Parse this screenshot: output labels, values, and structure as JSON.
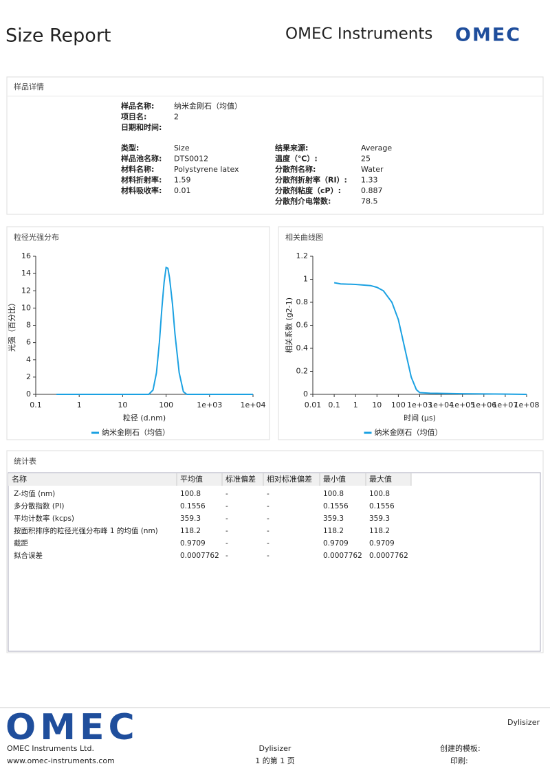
{
  "header": {
    "title": "Size Report",
    "company": "OMEC Instruments",
    "logo": "OMEC"
  },
  "sample": {
    "title": "样品详情",
    "top": [
      {
        "label": "样品名称:",
        "value": "纳米金刚石（均值）"
      },
      {
        "label": "项目名:",
        "value": "2"
      },
      {
        "label": "日期和时间:"
      }
    ],
    "left": [
      {
        "label": "类型:",
        "value": "Size"
      },
      {
        "label": "样品池名称:",
        "value": "DTS0012"
      },
      {
        "label": "材料名称:",
        "value": "Polystyrene latex"
      },
      {
        "label": "材料折射率:",
        "value": "1.59"
      },
      {
        "label": "材料吸收率:",
        "value": "0.01"
      }
    ],
    "right": [
      {
        "label": "结果来源:",
        "value": "Average"
      },
      {
        "label": "温度（℃）:",
        "value": "25"
      },
      {
        "label": "分散剂名称:",
        "value": "Water"
      },
      {
        "label": "分散剂折射率（RI）:",
        "value": "1.33"
      },
      {
        "label": "分散剂粘度（cP）:",
        "value": "0.887"
      },
      {
        "label": "分散剂介电常数:",
        "value": "78.5"
      }
    ]
  },
  "chart_data": [
    {
      "type": "line",
      "title": "粒径光强分布",
      "x_label": "粒径 (d.nm)",
      "y_label": "光强（百分比）",
      "xscale": "log",
      "grid": false,
      "x": [
        0.3,
        1,
        10,
        40,
        50,
        60,
        70,
        80,
        90,
        100,
        110,
        120,
        140,
        160,
        200,
        250,
        300,
        400,
        1000,
        10000
      ],
      "series": [
        {
          "name": "纳米金刚石（均值）",
          "color": "#1ba1e2",
          "values": [
            0,
            0,
            0,
            0,
            0.5,
            2.5,
            6,
            10,
            13,
            14.7,
            14.6,
            13.5,
            10.5,
            7,
            2.5,
            0.3,
            0,
            0,
            0,
            0
          ]
        }
      ],
      "xlim": [
        0.1,
        10000
      ],
      "xticks": [
        0.1,
        1,
        10,
        100,
        {
          "value": 1000,
          "label": "1e+03"
        },
        {
          "value": 10000,
          "label": "1e+04"
        }
      ],
      "ylim": [
        0,
        16
      ],
      "yticks": [
        0,
        2,
        4,
        6,
        8,
        10,
        12,
        14,
        16
      ]
    },
    {
      "type": "line",
      "title": "相关曲线图",
      "x_label": "时间 (µs)",
      "y_label": "相关系数 (g2-1)",
      "xscale": "log",
      "grid": false,
      "x": [
        0.1,
        0.2,
        1,
        5,
        10,
        20,
        50,
        100,
        200,
        400,
        700,
        1000,
        3000,
        10000,
        100000,
        1000000,
        10000000,
        100000000
      ],
      "series": [
        {
          "name": "纳米金刚石（均值）",
          "color": "#1ba1e2",
          "values": [
            0.97,
            0.96,
            0.955,
            0.945,
            0.93,
            0.9,
            0.8,
            0.65,
            0.4,
            0.15,
            0.04,
            0.015,
            0.01,
            0.008,
            0.005,
            0.004,
            0.002,
            0
          ]
        }
      ],
      "xlim": [
        0.01,
        100000000
      ],
      "xticks": [
        0.01,
        0.1,
        1,
        10,
        100,
        {
          "value": 1000,
          "label": "1e+03"
        },
        {
          "value": 10000,
          "label": "1e+04"
        },
        {
          "value": 100000,
          "label": "1e+05"
        },
        {
          "value": 1000000,
          "label": "1e+06"
        },
        {
          "value": 10000000,
          "label": "1e+07"
        },
        {
          "value": 100000000,
          "label": "1e+08"
        }
      ],
      "ylim": [
        0,
        1.2
      ],
      "yticks": [
        0,
        0.2,
        0.4,
        0.6,
        0.8,
        1,
        1.2
      ]
    }
  ],
  "table": {
    "title": "统计表",
    "columns": [
      "名称",
      "平均值",
      "标准偏差",
      "相对标准偏差",
      "最小值",
      "最大值"
    ],
    "rows": [
      [
        "Z-均值 (nm)",
        "100.8",
        "-",
        "-",
        "100.8",
        "100.8"
      ],
      [
        "多分散指数 (PI)",
        "0.1556",
        "-",
        "-",
        "0.1556",
        "0.1556"
      ],
      [
        "平均计数率 (kcps)",
        "359.3",
        "-",
        "-",
        "359.3",
        "359.3"
      ],
      [
        "按面积排序的粒径光强分布峰 1 的均值 (nm)",
        "118.2",
        "-",
        "-",
        "118.2",
        "118.2"
      ],
      [
        "截距",
        "0.9709",
        "-",
        "-",
        "0.9709",
        "0.9709"
      ],
      [
        "拟合误差",
        "0.0007762",
        "-",
        "-",
        "0.0007762",
        "0.0007762"
      ]
    ]
  },
  "footer": {
    "logo": "OMEC",
    "company": "OMEC Instruments Ltd.",
    "website": "www.omec-instruments.com",
    "product": "Dylisizer",
    "page": "1 的第 1 页",
    "product_right": "Dylisizer",
    "template": "创建的模板:",
    "print": "印刷:"
  }
}
